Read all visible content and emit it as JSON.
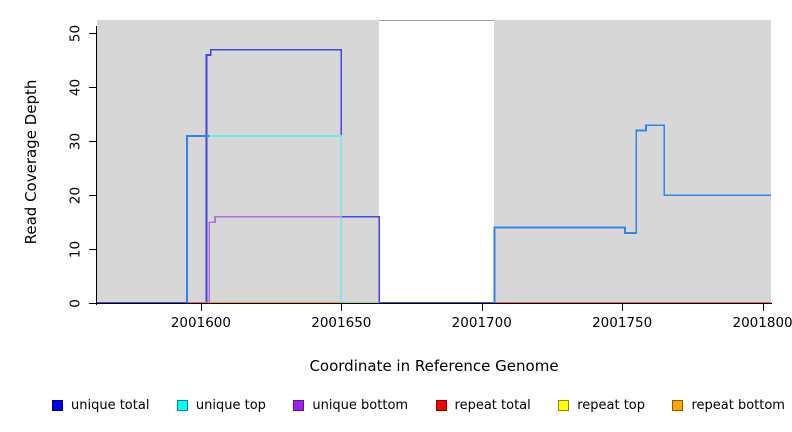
{
  "chart_data": {
    "type": "line",
    "step": true,
    "title": "",
    "xlabel": "Coordinate in Reference Genome",
    "ylabel": "Read Coverage Depth",
    "xlim": [
      2001563,
      2001803
    ],
    "ylim": [
      0,
      52.5
    ],
    "grid": false,
    "background_color": "#FFFFFF",
    "plot_background": "#D7D7D7",
    "highlight_band": {
      "x_start": 2001663.5,
      "x_end": 2001704.5,
      "color": "#FFFFFF"
    },
    "xticks": [
      {
        "value": 2001600,
        "label": "2001600"
      },
      {
        "value": 2001650,
        "label": "2001650"
      },
      {
        "value": 2001700,
        "label": "2001700"
      },
      {
        "value": 2001750,
        "label": "2001750"
      },
      {
        "value": 2001800,
        "label": "2001800"
      }
    ],
    "yticks": [
      {
        "value": 0,
        "label": "0"
      },
      {
        "value": 10,
        "label": "10"
      },
      {
        "value": 20,
        "label": "20"
      },
      {
        "value": 30,
        "label": "30"
      },
      {
        "value": 40,
        "label": "40"
      },
      {
        "value": 50,
        "label": "50"
      }
    ],
    "legend_position": "bottom",
    "legend": [
      {
        "label": "unique total",
        "color": "#0000FF",
        "border": "#000080"
      },
      {
        "label": "unique top",
        "color": "#00FFFF",
        "border": "#008B8B"
      },
      {
        "label": "unique bottom",
        "color": "#A020F0",
        "border": "#551A8B"
      },
      {
        "label": "repeat total",
        "color": "#FF0000",
        "border": "#8B0000"
      },
      {
        "label": "repeat top",
        "color": "#FFFF00",
        "border": "#8B8B00"
      },
      {
        "label": "repeat bottom",
        "color": "#FFA500",
        "border": "#8B5A00"
      }
    ],
    "series": [
      {
        "name": "unique-total-line",
        "color": "#4646E4",
        "points": [
          [
            2001563,
            0
          ],
          [
            2001602,
            0
          ],
          [
            2001602,
            46
          ],
          [
            2001603.5,
            46
          ],
          [
            2001603.5,
            47
          ],
          [
            2001650,
            47
          ],
          [
            2001650,
            16
          ],
          [
            2001663.5,
            16
          ],
          [
            2001663.5,
            0
          ],
          [
            2001704.5,
            0
          ]
        ]
      },
      {
        "name": "repeat-total-line-left",
        "color": "#E26876",
        "points": [
          [
            2001595,
            0
          ],
          [
            2001603,
            0
          ]
        ]
      },
      {
        "name": "repeat-total-line-right",
        "color": "#E26876",
        "points": [
          [
            2001704.5,
            0
          ],
          [
            2001803,
            0
          ]
        ]
      },
      {
        "name": "repeat-bottom-line",
        "color": "#F89C15",
        "points": [
          [
            2001603,
            0
          ],
          [
            2001650,
            0
          ]
        ]
      },
      {
        "name": "green-overlap-line",
        "color": "#8FD98F",
        "points": [
          [
            2001650,
            0
          ],
          [
            2001663.5,
            0
          ]
        ]
      },
      {
        "name": "unique-top-line",
        "color": "#74E7DF",
        "points": [
          [
            2001603,
            31
          ],
          [
            2001650,
            31
          ],
          [
            2001650,
            0
          ]
        ]
      },
      {
        "name": "unique-bottom-line",
        "color": "#B671D9",
        "points": [
          [
            2001603,
            0
          ],
          [
            2001603,
            15
          ],
          [
            2001605,
            15
          ],
          [
            2001605,
            16
          ],
          [
            2001650,
            16
          ]
        ]
      },
      {
        "name": "coverage-blue-line-left",
        "color": "#2F86E8",
        "points": [
          [
            2001595,
            0
          ],
          [
            2001595,
            31
          ],
          [
            2001603,
            31
          ]
        ]
      },
      {
        "name": "coverage-blue-line-right",
        "color": "#2F86E8",
        "points": [
          [
            2001704.5,
            0
          ],
          [
            2001704.5,
            14
          ],
          [
            2001751,
            14
          ],
          [
            2001751,
            13
          ],
          [
            2001755,
            13
          ],
          [
            2001755,
            32
          ],
          [
            2001758.5,
            32
          ],
          [
            2001758.5,
            33
          ],
          [
            2001765,
            33
          ],
          [
            2001765,
            20
          ],
          [
            2001803,
            20
          ]
        ]
      }
    ]
  }
}
